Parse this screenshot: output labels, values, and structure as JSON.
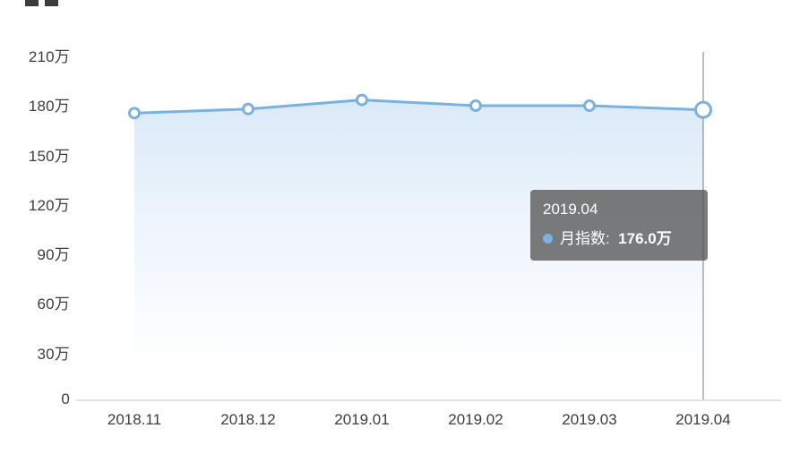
{
  "chart_data": {
    "type": "line",
    "title": "",
    "x": [
      "2018.11",
      "2018.12",
      "2019.01",
      "2019.02",
      "2019.03",
      "2019.04"
    ],
    "series": [
      {
        "name": "月指数",
        "values": [
          174,
          176.5,
          182,
          178.5,
          178.5,
          176
        ]
      }
    ],
    "unit": "万",
    "ylim": [
      0,
      210
    ],
    "y_ticks": [
      {
        "value": 210,
        "label": "210万"
      },
      {
        "value": 180,
        "label": "180万"
      },
      {
        "value": 150,
        "label": "150万"
      },
      {
        "value": 120,
        "label": "120万"
      },
      {
        "value": 90,
        "label": "90万"
      },
      {
        "value": 60,
        "label": "60万"
      },
      {
        "value": 30,
        "label": "30万"
      },
      {
        "value": 0,
        "label": "0"
      }
    ],
    "grid": false,
    "legend_position": "none",
    "area_fill": true,
    "highlight_index": 5,
    "colors": {
      "line": "#7ab1e0",
      "marker_fill": "#ffffff",
      "area_top": "#d9e8f8",
      "area_bottom": "#ffffff",
      "axis_line": "#d9d9d9",
      "crosshair": "#7a7a7a",
      "tick_text": "#3d3d3d"
    }
  },
  "tooltip": {
    "title": "2019.04",
    "series_label": "月指数",
    "separator": ":  ",
    "value": "176.0万"
  }
}
